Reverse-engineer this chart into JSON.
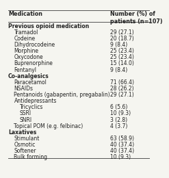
{
  "title_col1": "Medication",
  "title_col2": "Number (%) of\npatients (n=107)",
  "rows": [
    {
      "label": "Previous opioid medication",
      "value": "",
      "indent": 0,
      "bold": true,
      "header": true
    },
    {
      "label": "Tramadol",
      "value": "29 (27.1)",
      "indent": 1,
      "bold": false,
      "header": false
    },
    {
      "label": "Codeine",
      "value": "20 (18.7)",
      "indent": 1,
      "bold": false,
      "header": false
    },
    {
      "label": "Dihydrocodeine",
      "value": "9 (8.4)",
      "indent": 1,
      "bold": false,
      "header": false
    },
    {
      "label": "Morphine",
      "value": "25 (23.4)",
      "indent": 1,
      "bold": false,
      "header": false
    },
    {
      "label": "Oxycodone",
      "value": "25 (23.4)",
      "indent": 1,
      "bold": false,
      "header": false
    },
    {
      "label": "Buprenorphine",
      "value": "15 (14.0)",
      "indent": 1,
      "bold": false,
      "header": false
    },
    {
      "label": "Fentanyl",
      "value": "9 (8.4)",
      "indent": 1,
      "bold": false,
      "header": false
    },
    {
      "label": "Co-analgesics",
      "value": "",
      "indent": 0,
      "bold": true,
      "header": true
    },
    {
      "label": "Paracetamol",
      "value": "71 (66.4)",
      "indent": 1,
      "bold": false,
      "header": false
    },
    {
      "label": "NSAIDs",
      "value": "28 (26.2)",
      "indent": 1,
      "bold": false,
      "header": false
    },
    {
      "label": "Pentanoids (gabapentin, pregabalin)",
      "value": "29 (27.1)",
      "indent": 1,
      "bold": false,
      "header": false
    },
    {
      "label": "Antidepressants",
      "value": "",
      "indent": 1,
      "bold": false,
      "header": true
    },
    {
      "label": "Tricyclics",
      "value": "6 (5.6)",
      "indent": 2,
      "bold": false,
      "header": false
    },
    {
      "label": "SSRI",
      "value": "10 (9.3)",
      "indent": 2,
      "bold": false,
      "header": false
    },
    {
      "label": "SNRI",
      "value": "3 (2.8)",
      "indent": 2,
      "bold": false,
      "header": false
    },
    {
      "label": "Topical POM (e.g. felbinac)",
      "value": "4 (3.7)",
      "indent": 1,
      "bold": false,
      "header": false
    },
    {
      "label": "Laxatives",
      "value": "",
      "indent": 0,
      "bold": true,
      "header": true
    },
    {
      "label": "Stimulant",
      "value": "63 (58.9)",
      "indent": 1,
      "bold": false,
      "header": false
    },
    {
      "label": "Osmotic",
      "value": "40 (37.4)",
      "indent": 1,
      "bold": false,
      "header": false
    },
    {
      "label": "Softener",
      "value": "40 (37.4)",
      "indent": 1,
      "bold": false,
      "header": false
    },
    {
      "label": "Bulk forming",
      "value": "10 (9.3)",
      "indent": 1,
      "bold": false,
      "header": false
    }
  ],
  "bg_color": "#f5f5f0",
  "line_color": "#555555",
  "text_color": "#222222",
  "font_size": 5.5,
  "header_font_size": 5.8
}
